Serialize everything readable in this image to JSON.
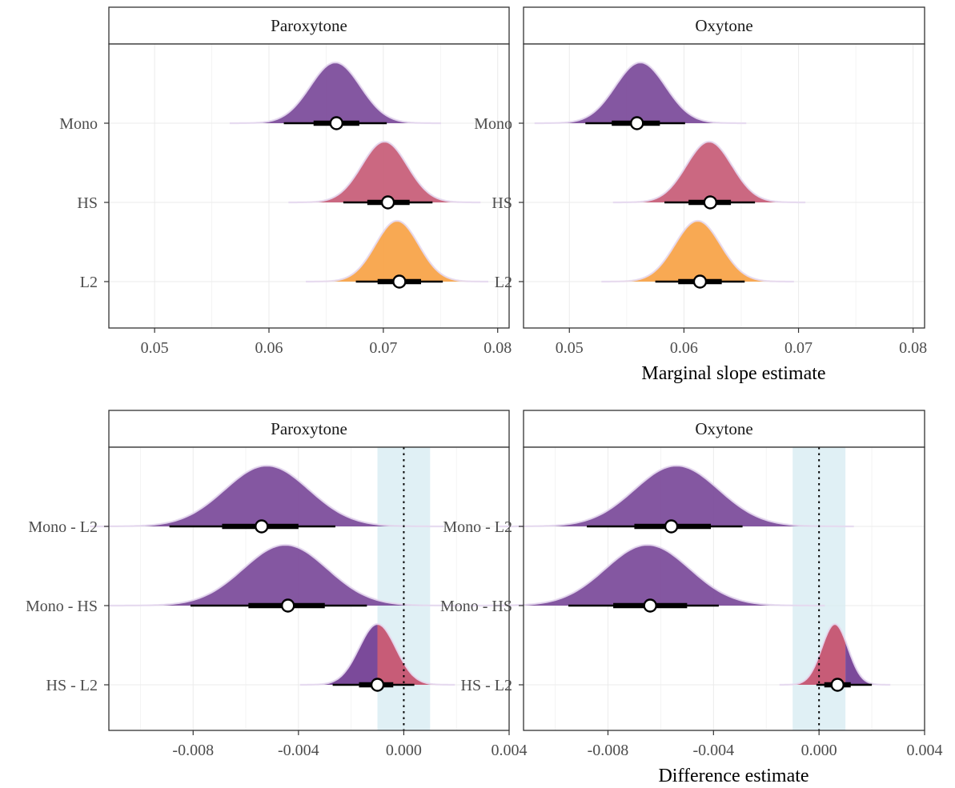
{
  "colors": {
    "Mono": "#7b4a9a",
    "HS": "#c75c77",
    "L2": "#f8a346",
    "rope": "#d6ebf2"
  },
  "chart_data": [
    {
      "type": "density-interval",
      "facet": "Paroxytone",
      "xlim": [
        0.046,
        0.081
      ],
      "xticks": [
        0.05,
        0.06,
        0.07,
        0.08
      ],
      "xtick_labels": [
        "0.05",
        "0.06",
        "0.07",
        "0.08"
      ],
      "categories": [
        "Mono",
        "HS",
        "L2"
      ],
      "series": [
        {
          "category": "Mono",
          "color": "Mono",
          "median": 0.0659,
          "iqr": [
            0.0639,
            0.0679
          ],
          "ci95": [
            0.0613,
            0.0703
          ],
          "peak": 0.0658,
          "sd": 0.0022
        },
        {
          "category": "HS",
          "color": "HS",
          "median": 0.0704,
          "iqr": [
            0.0686,
            0.0723
          ],
          "ci95": [
            0.0665,
            0.0743
          ],
          "peak": 0.0701,
          "sd": 0.002
        },
        {
          "category": "L2",
          "color": "L2",
          "median": 0.0714,
          "iqr": [
            0.0695,
            0.0733
          ],
          "ci95": [
            0.0676,
            0.0752
          ],
          "peak": 0.0712,
          "sd": 0.0019
        }
      ]
    },
    {
      "type": "density-interval",
      "facet": "Oxytone",
      "xlim": [
        0.046,
        0.081
      ],
      "xticks": [
        0.05,
        0.06,
        0.07,
        0.08
      ],
      "xtick_labels": [
        "0.05",
        "0.06",
        "0.07",
        "0.08"
      ],
      "xlabel": "Marginal slope estimate",
      "categories": [
        "Mono",
        "HS",
        "L2"
      ],
      "series": [
        {
          "category": "Mono",
          "color": "Mono",
          "median": 0.0559,
          "iqr": [
            0.0537,
            0.0579
          ],
          "ci95": [
            0.0514,
            0.0601
          ],
          "peak": 0.0562,
          "sd": 0.0022
        },
        {
          "category": "HS",
          "color": "HS",
          "median": 0.0623,
          "iqr": [
            0.0604,
            0.0641
          ],
          "ci95": [
            0.0583,
            0.0662
          ],
          "peak": 0.0622,
          "sd": 0.002
        },
        {
          "category": "L2",
          "color": "L2",
          "median": 0.0614,
          "iqr": [
            0.0595,
            0.0633
          ],
          "ci95": [
            0.0575,
            0.0653
          ],
          "peak": 0.0612,
          "sd": 0.002
        }
      ]
    },
    {
      "type": "density-interval",
      "facet": "Paroxytone",
      "xlim": [
        -0.0112,
        0.004
      ],
      "xticks": [
        -0.008,
        -0.004,
        0.0,
        0.004
      ],
      "xtick_labels": [
        "-0.008",
        "-0.004",
        "0.000",
        "0.004"
      ],
      "rope": [
        -0.001,
        0.001
      ],
      "reference_line": 0,
      "categories": [
        "Mono - L2",
        "Mono - HS",
        "HS - L2"
      ],
      "series": [
        {
          "category": "Mono - L2",
          "color": "Mono",
          "median": -0.0054,
          "iqr": [
            -0.0069,
            -0.004
          ],
          "ci95": [
            -0.0089,
            -0.0026
          ],
          "peak": -0.0052,
          "sd": 0.0016
        },
        {
          "category": "Mono - HS",
          "color": "Mono",
          "median": -0.0044,
          "iqr": [
            -0.0059,
            -0.003
          ],
          "ci95": [
            -0.0081,
            -0.0014
          ],
          "peak": -0.0045,
          "sd": 0.0016
        },
        {
          "category": "HS - L2",
          "color": "HS",
          "split_color": "Mono",
          "split_at": -0.001,
          "median": -0.001,
          "iqr": [
            -0.0017,
            -0.0004
          ],
          "ci95": [
            -0.0027,
            0.0004
          ],
          "peak": -0.001,
          "sd": 0.0007
        }
      ]
    },
    {
      "type": "density-interval",
      "facet": "Oxytone",
      "xlim": [
        -0.0112,
        0.004
      ],
      "xticks": [
        -0.008,
        -0.004,
        0.0,
        0.004
      ],
      "xtick_labels": [
        "-0.008",
        "-0.004",
        "0.000",
        "0.004"
      ],
      "xlabel": "Difference estimate",
      "rope": [
        -0.001,
        0.001
      ],
      "reference_line": 0,
      "categories": [
        "Mono - L2",
        "Mono - HS",
        "HS - L2"
      ],
      "series": [
        {
          "category": "Mono - L2",
          "color": "Mono",
          "median": -0.0056,
          "iqr": [
            -0.007,
            -0.0041
          ],
          "ci95": [
            -0.0088,
            -0.0029
          ],
          "peak": -0.0054,
          "sd": 0.0016
        },
        {
          "category": "Mono - HS",
          "color": "Mono",
          "median": -0.0064,
          "iqr": [
            -0.0078,
            -0.005
          ],
          "ci95": [
            -0.0095,
            -0.0038
          ],
          "peak": -0.0065,
          "sd": 0.0016
        },
        {
          "category": "HS - L2",
          "color": "HS",
          "split_color": "Mono",
          "split_at": 0.001,
          "split_side": "right",
          "median": 0.0007,
          "iqr": [
            0.0002,
            0.0012
          ],
          "ci95": [
            -0.0001,
            0.002
          ],
          "peak": 0.0006,
          "sd": 0.0005
        }
      ]
    }
  ]
}
